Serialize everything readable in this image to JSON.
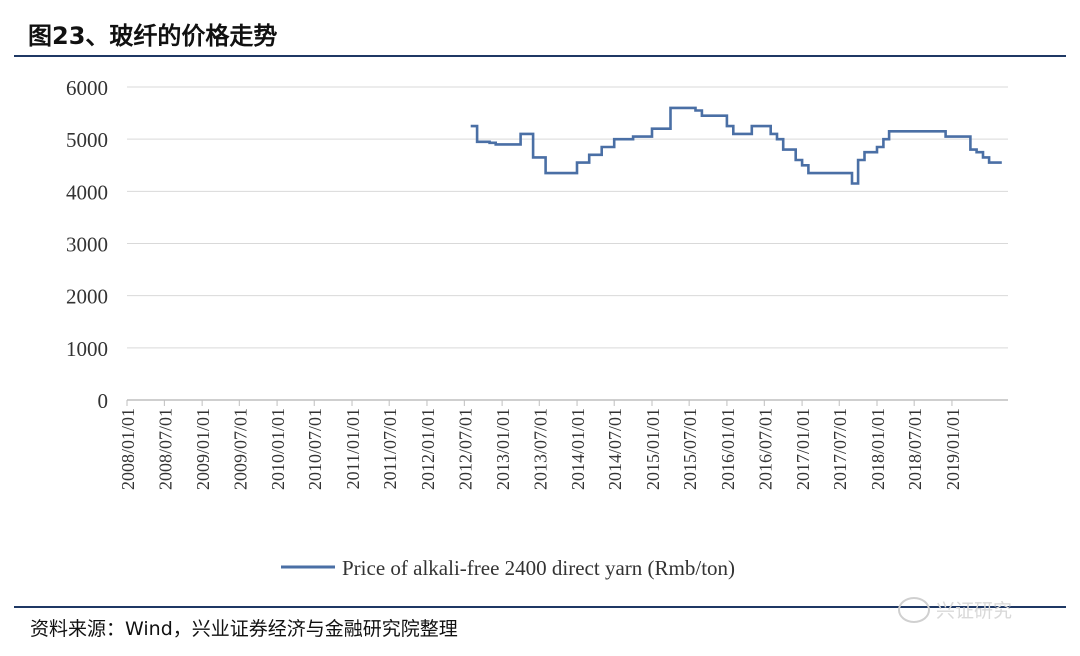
{
  "title": "图23、玻纤的价格走势",
  "source": "资料来源：Wind，兴业证券经济与金融研究院整理",
  "watermark": "兴证研究",
  "colors": {
    "line": "#4a6fa5",
    "rule": "#1f3864",
    "grid": "#d9d9d9"
  },
  "chart_data": {
    "type": "line",
    "title": "",
    "xlabel": "",
    "ylabel": "",
    "ylim": [
      0,
      6000
    ],
    "yticks": [
      0,
      1000,
      2000,
      3000,
      4000,
      5000,
      6000
    ],
    "xlim": [
      "2008-01-01",
      "2019-10-01"
    ],
    "xticks": [
      "2008/01/01",
      "2008/07/01",
      "2009/01/01",
      "2009/07/01",
      "2010/01/01",
      "2010/07/01",
      "2011/01/01",
      "2011/07/01",
      "2012/01/01",
      "2012/07/01",
      "2013/01/01",
      "2013/07/01",
      "2014/01/01",
      "2014/07/01",
      "2015/01/01",
      "2015/07/01",
      "2016/01/01",
      "2016/07/01",
      "2017/01/01",
      "2017/07/01",
      "2018/01/01",
      "2018/07/01",
      "2019/01/01"
    ],
    "grid": true,
    "legend": "bottom-center",
    "series": [
      {
        "name": "Price of alkali-free 2400 direct yarn (Rmb/ton)",
        "step": true,
        "points": [
          [
            "2012-08-01",
            5250
          ],
          [
            "2012-09-01",
            4950
          ],
          [
            "2012-11-01",
            4930
          ],
          [
            "2012-12-01",
            4900
          ],
          [
            "2013-04-01",
            5100
          ],
          [
            "2013-06-01",
            4650
          ],
          [
            "2013-08-01",
            4350
          ],
          [
            "2014-01-01",
            4550
          ],
          [
            "2014-03-01",
            4700
          ],
          [
            "2014-05-01",
            4850
          ],
          [
            "2014-07-01",
            5000
          ],
          [
            "2014-10-01",
            5050
          ],
          [
            "2015-01-01",
            5200
          ],
          [
            "2015-04-01",
            5600
          ],
          [
            "2015-08-01",
            5550
          ],
          [
            "2015-09-01",
            5450
          ],
          [
            "2016-01-01",
            5250
          ],
          [
            "2016-02-01",
            5100
          ],
          [
            "2016-05-01",
            5250
          ],
          [
            "2016-08-01",
            5100
          ],
          [
            "2016-09-01",
            5000
          ],
          [
            "2016-10-01",
            4800
          ],
          [
            "2016-12-01",
            4600
          ],
          [
            "2017-01-01",
            4500
          ],
          [
            "2017-02-01",
            4350
          ],
          [
            "2017-09-01",
            4150
          ],
          [
            "2017-10-01",
            4600
          ],
          [
            "2017-11-01",
            4750
          ],
          [
            "2018-01-01",
            4850
          ],
          [
            "2018-02-01",
            5000
          ],
          [
            "2018-03-01",
            5150
          ],
          [
            "2018-12-01",
            5050
          ],
          [
            "2019-04-01",
            4800
          ],
          [
            "2019-05-01",
            4750
          ],
          [
            "2019-06-01",
            4650
          ],
          [
            "2019-07-01",
            4550
          ],
          [
            "2019-09-01",
            4550
          ]
        ]
      }
    ]
  }
}
